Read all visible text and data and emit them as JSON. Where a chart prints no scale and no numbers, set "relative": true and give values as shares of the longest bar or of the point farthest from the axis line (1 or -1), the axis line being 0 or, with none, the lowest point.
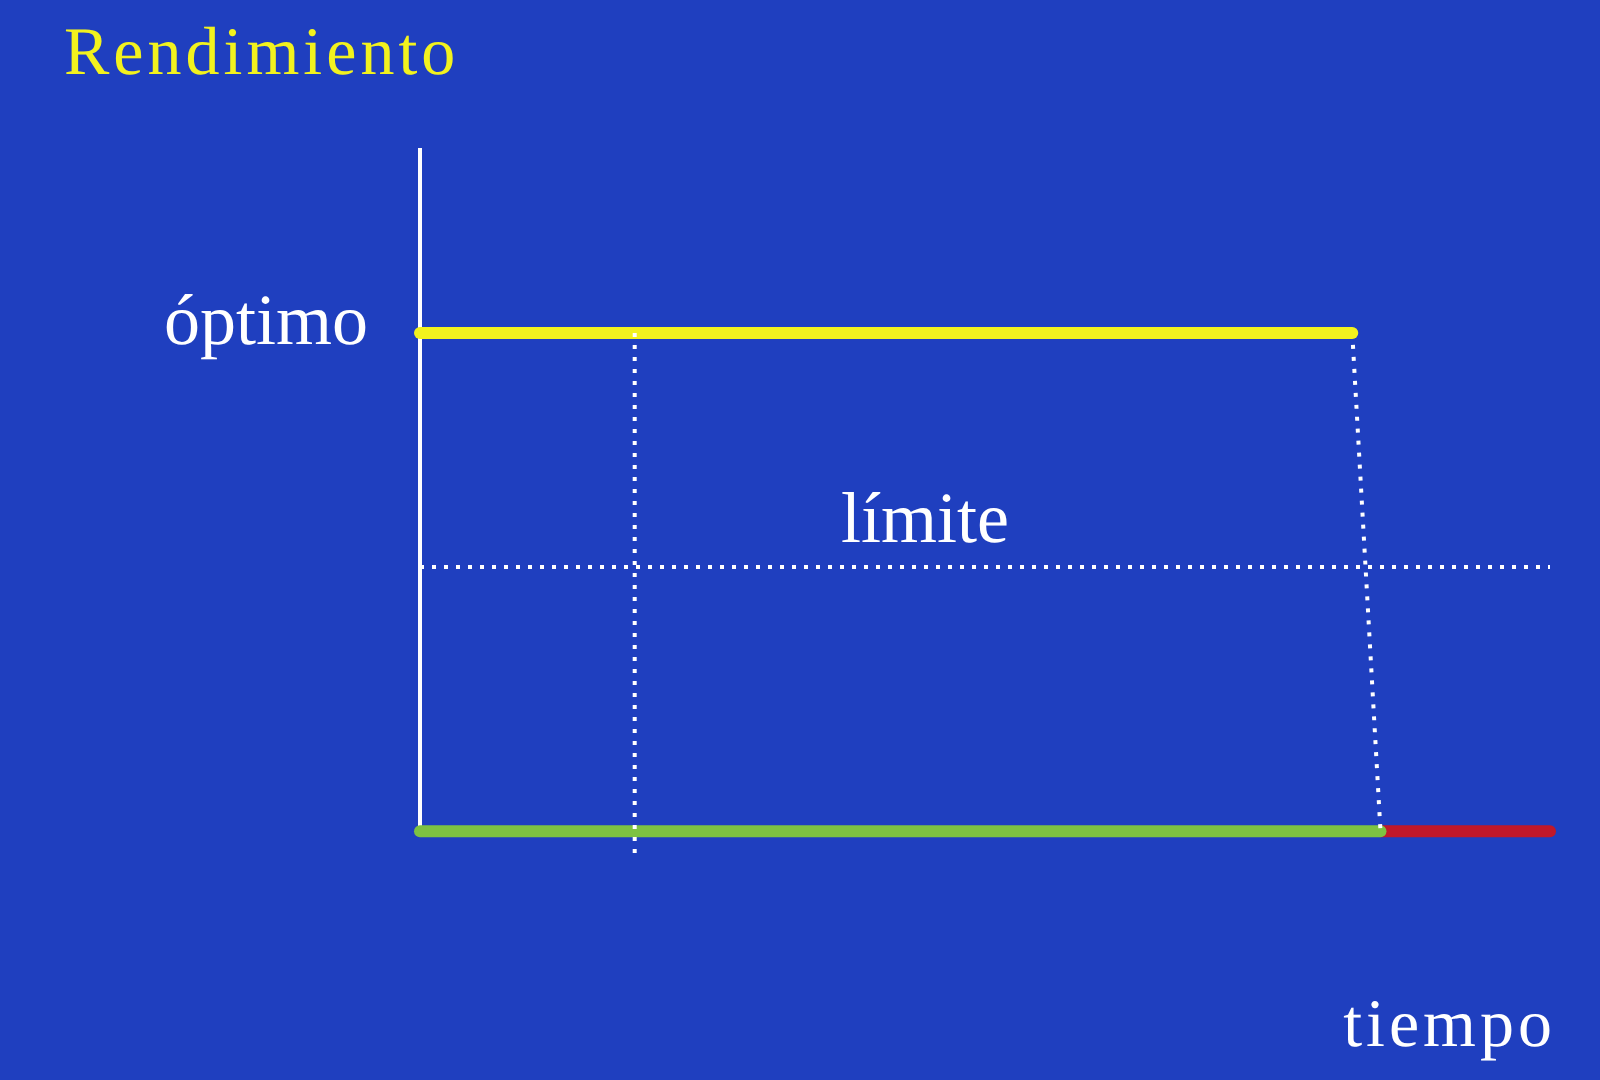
{
  "chart_data": {
    "type": "line",
    "relative": true,
    "ylabel": "Rendimiento",
    "xlabel": "tiempo",
    "grid": false,
    "marker": "none",
    "categories": [
      null,
      null,
      null,
      null,
      null,
      null,
      null,
      null,
      null,
      null,
      null,
      null,
      null,
      null,
      null,
      null,
      null,
      null,
      null,
      null,
      null,
      null,
      null,
      null,
      null,
      null,
      null,
      null,
      null,
      null,
      null,
      null,
      null,
      null,
      null,
      null,
      null,
      null,
      null,
      null,
      null
    ],
    "series": [
      {
        "color": "#f2f21e",
        "values": [
          1,
          1,
          1,
          1,
          1,
          1,
          1,
          1,
          1,
          1,
          1,
          1,
          1,
          1,
          1,
          1,
          1,
          1,
          1,
          1,
          1,
          1,
          1,
          1,
          1,
          1,
          1,
          1,
          1,
          1,
          1,
          1,
          1,
          1,
          null,
          null,
          null,
          null,
          null,
          null,
          null
        ]
      },
      {
        "color": "#ffffff",
        "line_style": "dotted",
        "values": [
          null,
          null,
          null,
          null,
          null,
          null,
          null,
          null,
          null,
          null,
          null,
          null,
          null,
          null,
          null,
          null,
          null,
          null,
          null,
          null,
          null,
          null,
          null,
          null,
          null,
          null,
          null,
          null,
          null,
          null,
          null,
          null,
          null,
          1,
          0,
          null,
          null,
          null,
          null,
          null,
          null
        ]
      },
      {
        "color": "#7dc242",
        "values": [
          0,
          0,
          0,
          0,
          0,
          0,
          0,
          0,
          0,
          0,
          0,
          0,
          0,
          0,
          0,
          0,
          0,
          0,
          0,
          0,
          0,
          0,
          0,
          0,
          0,
          0,
          0,
          0,
          0,
          0,
          0,
          0,
          0,
          0,
          0,
          null,
          null,
          null,
          null,
          null,
          null
        ]
      },
      {
        "color": "#c0182a",
        "values": [
          null,
          null,
          null,
          null,
          null,
          null,
          null,
          null,
          null,
          null,
          null,
          null,
          null,
          null,
          null,
          null,
          null,
          null,
          null,
          null,
          null,
          null,
          null,
          null,
          null,
          null,
          null,
          null,
          null,
          null,
          null,
          null,
          null,
          null,
          0,
          0,
          0,
          0,
          0,
          0,
          0
        ]
      }
    ],
    "annotations": [
      "óptimo"
    ],
    "ref_lines": [
      {
        "axis": "y",
        "value": 0.53,
        "label": "límite",
        "color": "#ffffff",
        "line_style": "dotted"
      }
    ]
  }
}
